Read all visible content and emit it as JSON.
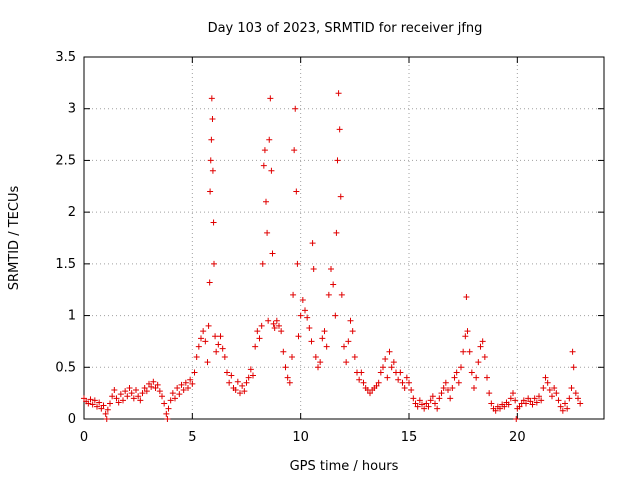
{
  "chart_data": {
    "type": "scatter",
    "title": "Day 103 of 2023, SRMTID for receiver jfng",
    "xlabel": "GPS time / hours",
    "ylabel": "SRMTID / TECUs",
    "xlim": [
      0,
      24
    ],
    "ylim": [
      0,
      3.5
    ],
    "x_ticks": [
      0,
      5,
      10,
      15,
      20
    ],
    "x_tick_labels": [
      "0",
      "5",
      "10",
      "15",
      "20"
    ],
    "y_ticks": [
      0,
      0.5,
      1,
      1.5,
      2,
      2.5,
      3,
      3.5
    ],
    "y_tick_labels": [
      "0",
      "0.5",
      "1",
      "1.5",
      "2",
      "2.5",
      "3",
      "3.5"
    ],
    "grid": true,
    "marker": "+",
    "series": [
      {
        "name": "SRMTID",
        "color": "#e00000",
        "points": [
          [
            0.0,
            0.2
          ],
          [
            0.1,
            0.17
          ],
          [
            0.2,
            0.15
          ],
          [
            0.3,
            0.19
          ],
          [
            0.4,
            0.14
          ],
          [
            0.5,
            0.18
          ],
          [
            0.6,
            0.12
          ],
          [
            0.7,
            0.16
          ],
          [
            0.8,
            0.1
          ],
          [
            0.9,
            0.13
          ],
          [
            1.0,
            0.05
          ],
          [
            1.05,
            0.0
          ],
          [
            1.1,
            0.09
          ],
          [
            1.2,
            0.15
          ],
          [
            1.3,
            0.22
          ],
          [
            1.4,
            0.28
          ],
          [
            1.5,
            0.2
          ],
          [
            1.6,
            0.16
          ],
          [
            1.7,
            0.24
          ],
          [
            1.8,
            0.18
          ],
          [
            1.9,
            0.27
          ],
          [
            2.0,
            0.22
          ],
          [
            2.1,
            0.3
          ],
          [
            2.2,
            0.25
          ],
          [
            2.3,
            0.2
          ],
          [
            2.4,
            0.28
          ],
          [
            2.5,
            0.22
          ],
          [
            2.6,
            0.18
          ],
          [
            2.7,
            0.25
          ],
          [
            2.8,
            0.3
          ],
          [
            2.9,
            0.27
          ],
          [
            3.0,
            0.34
          ],
          [
            3.1,
            0.31
          ],
          [
            3.2,
            0.36
          ],
          [
            3.3,
            0.3
          ],
          [
            3.4,
            0.33
          ],
          [
            3.5,
            0.27
          ],
          [
            3.6,
            0.22
          ],
          [
            3.7,
            0.15
          ],
          [
            3.8,
            0.05
          ],
          [
            3.85,
            0.0
          ],
          [
            3.9,
            0.1
          ],
          [
            4.0,
            0.18
          ],
          [
            4.1,
            0.25
          ],
          [
            4.2,
            0.2
          ],
          [
            4.3,
            0.3
          ],
          [
            4.4,
            0.24
          ],
          [
            4.5,
            0.33
          ],
          [
            4.6,
            0.28
          ],
          [
            4.7,
            0.35
          ],
          [
            4.8,
            0.3
          ],
          [
            4.9,
            0.38
          ],
          [
            5.0,
            0.34
          ],
          [
            5.1,
            0.45
          ],
          [
            5.2,
            0.6
          ],
          [
            5.3,
            0.7
          ],
          [
            5.4,
            0.78
          ],
          [
            5.5,
            0.85
          ],
          [
            5.6,
            0.75
          ],
          [
            5.7,
            0.55
          ],
          [
            5.75,
            0.9
          ],
          [
            5.8,
            1.32
          ],
          [
            5.82,
            2.2
          ],
          [
            5.85,
            2.5
          ],
          [
            5.88,
            2.7
          ],
          [
            5.9,
            3.1
          ],
          [
            5.93,
            2.9
          ],
          [
            5.95,
            2.4
          ],
          [
            5.98,
            1.9
          ],
          [
            6.0,
            1.5
          ],
          [
            6.05,
            0.8
          ],
          [
            6.1,
            0.65
          ],
          [
            6.2,
            0.72
          ],
          [
            6.3,
            0.8
          ],
          [
            6.4,
            0.68
          ],
          [
            6.5,
            0.6
          ],
          [
            6.6,
            0.45
          ],
          [
            6.7,
            0.35
          ],
          [
            6.8,
            0.42
          ],
          [
            6.9,
            0.3
          ],
          [
            7.0,
            0.28
          ],
          [
            7.1,
            0.36
          ],
          [
            7.2,
            0.25
          ],
          [
            7.3,
            0.32
          ],
          [
            7.4,
            0.27
          ],
          [
            7.5,
            0.35
          ],
          [
            7.6,
            0.4
          ],
          [
            7.7,
            0.48
          ],
          [
            7.8,
            0.42
          ],
          [
            7.9,
            0.7
          ],
          [
            8.0,
            0.85
          ],
          [
            8.1,
            0.78
          ],
          [
            8.2,
            0.9
          ],
          [
            8.25,
            1.5
          ],
          [
            8.3,
            2.45
          ],
          [
            8.35,
            2.6
          ],
          [
            8.4,
            2.1
          ],
          [
            8.45,
            1.8
          ],
          [
            8.5,
            0.95
          ],
          [
            8.55,
            2.7
          ],
          [
            8.6,
            3.1
          ],
          [
            8.65,
            2.4
          ],
          [
            8.7,
            1.6
          ],
          [
            8.75,
            0.92
          ],
          [
            8.8,
            0.88
          ],
          [
            8.9,
            0.95
          ],
          [
            9.0,
            0.9
          ],
          [
            9.1,
            0.85
          ],
          [
            9.2,
            0.65
          ],
          [
            9.3,
            0.5
          ],
          [
            9.4,
            0.4
          ],
          [
            9.5,
            0.35
          ],
          [
            9.6,
            0.6
          ],
          [
            9.65,
            1.2
          ],
          [
            9.7,
            2.6
          ],
          [
            9.75,
            3.0
          ],
          [
            9.8,
            2.2
          ],
          [
            9.85,
            1.5
          ],
          [
            9.9,
            0.8
          ],
          [
            10.0,
            1.0
          ],
          [
            10.1,
            1.15
          ],
          [
            10.2,
            1.05
          ],
          [
            10.3,
            0.98
          ],
          [
            10.4,
            0.88
          ],
          [
            10.5,
            0.75
          ],
          [
            10.55,
            1.7
          ],
          [
            10.6,
            1.45
          ],
          [
            10.7,
            0.6
          ],
          [
            10.8,
            0.5
          ],
          [
            10.9,
            0.55
          ],
          [
            11.0,
            0.78
          ],
          [
            11.1,
            0.85
          ],
          [
            11.2,
            0.7
          ],
          [
            11.3,
            1.2
          ],
          [
            11.4,
            1.45
          ],
          [
            11.5,
            1.3
          ],
          [
            11.6,
            1.0
          ],
          [
            11.65,
            1.8
          ],
          [
            11.7,
            2.5
          ],
          [
            11.75,
            3.15
          ],
          [
            11.8,
            2.8
          ],
          [
            11.85,
            2.15
          ],
          [
            11.9,
            1.2
          ],
          [
            12.0,
            0.7
          ],
          [
            12.1,
            0.55
          ],
          [
            12.2,
            0.75
          ],
          [
            12.3,
            0.95
          ],
          [
            12.4,
            0.85
          ],
          [
            12.5,
            0.6
          ],
          [
            12.6,
            0.45
          ],
          [
            12.7,
            0.38
          ],
          [
            12.8,
            0.45
          ],
          [
            12.9,
            0.35
          ],
          [
            13.0,
            0.3
          ],
          [
            13.1,
            0.28
          ],
          [
            13.2,
            0.25
          ],
          [
            13.3,
            0.28
          ],
          [
            13.4,
            0.3
          ],
          [
            13.5,
            0.32
          ],
          [
            13.6,
            0.35
          ],
          [
            13.7,
            0.45
          ],
          [
            13.8,
            0.5
          ],
          [
            13.9,
            0.58
          ],
          [
            14.0,
            0.4
          ],
          [
            14.1,
            0.65
          ],
          [
            14.2,
            0.5
          ],
          [
            14.3,
            0.55
          ],
          [
            14.4,
            0.45
          ],
          [
            14.5,
            0.38
          ],
          [
            14.6,
            0.45
          ],
          [
            14.7,
            0.35
          ],
          [
            14.8,
            0.3
          ],
          [
            14.9,
            0.4
          ],
          [
            15.0,
            0.35
          ],
          [
            15.1,
            0.28
          ],
          [
            15.2,
            0.2
          ],
          [
            15.3,
            0.15
          ],
          [
            15.4,
            0.12
          ],
          [
            15.5,
            0.18
          ],
          [
            15.6,
            0.14
          ],
          [
            15.7,
            0.1
          ],
          [
            15.8,
            0.15
          ],
          [
            15.9,
            0.12
          ],
          [
            16.0,
            0.18
          ],
          [
            16.1,
            0.22
          ],
          [
            16.2,
            0.15
          ],
          [
            16.3,
            0.1
          ],
          [
            16.4,
            0.2
          ],
          [
            16.5,
            0.25
          ],
          [
            16.6,
            0.3
          ],
          [
            16.7,
            0.35
          ],
          [
            16.8,
            0.28
          ],
          [
            16.9,
            0.2
          ],
          [
            17.0,
            0.3
          ],
          [
            17.1,
            0.4
          ],
          [
            17.2,
            0.45
          ],
          [
            17.3,
            0.35
          ],
          [
            17.4,
            0.5
          ],
          [
            17.5,
            0.65
          ],
          [
            17.6,
            0.8
          ],
          [
            17.65,
            1.18
          ],
          [
            17.7,
            0.85
          ],
          [
            17.8,
            0.65
          ],
          [
            17.9,
            0.45
          ],
          [
            18.0,
            0.3
          ],
          [
            18.1,
            0.4
          ],
          [
            18.2,
            0.55
          ],
          [
            18.3,
            0.7
          ],
          [
            18.4,
            0.75
          ],
          [
            18.5,
            0.6
          ],
          [
            18.6,
            0.4
          ],
          [
            18.7,
            0.25
          ],
          [
            18.8,
            0.15
          ],
          [
            18.9,
            0.1
          ],
          [
            19.0,
            0.08
          ],
          [
            19.1,
            0.12
          ],
          [
            19.2,
            0.1
          ],
          [
            19.3,
            0.14
          ],
          [
            19.4,
            0.12
          ],
          [
            19.5,
            0.16
          ],
          [
            19.6,
            0.14
          ],
          [
            19.7,
            0.2
          ],
          [
            19.8,
            0.25
          ],
          [
            19.9,
            0.18
          ],
          [
            19.95,
            0.0
          ],
          [
            20.0,
            0.1
          ],
          [
            20.1,
            0.12
          ],
          [
            20.2,
            0.15
          ],
          [
            20.3,
            0.18
          ],
          [
            20.4,
            0.15
          ],
          [
            20.5,
            0.2
          ],
          [
            20.6,
            0.17
          ],
          [
            20.7,
            0.14
          ],
          [
            20.8,
            0.2
          ],
          [
            20.9,
            0.16
          ],
          [
            21.0,
            0.22
          ],
          [
            21.1,
            0.18
          ],
          [
            21.2,
            0.3
          ],
          [
            21.3,
            0.4
          ],
          [
            21.4,
            0.35
          ],
          [
            21.5,
            0.28
          ],
          [
            21.6,
            0.22
          ],
          [
            21.7,
            0.3
          ],
          [
            21.8,
            0.25
          ],
          [
            21.9,
            0.18
          ],
          [
            22.0,
            0.12
          ],
          [
            22.1,
            0.08
          ],
          [
            22.2,
            0.15
          ],
          [
            22.3,
            0.1
          ],
          [
            22.4,
            0.2
          ],
          [
            22.5,
            0.3
          ],
          [
            22.55,
            0.65
          ],
          [
            22.6,
            0.5
          ],
          [
            22.7,
            0.25
          ],
          [
            22.8,
            0.2
          ],
          [
            22.9,
            0.15
          ]
        ]
      }
    ]
  }
}
